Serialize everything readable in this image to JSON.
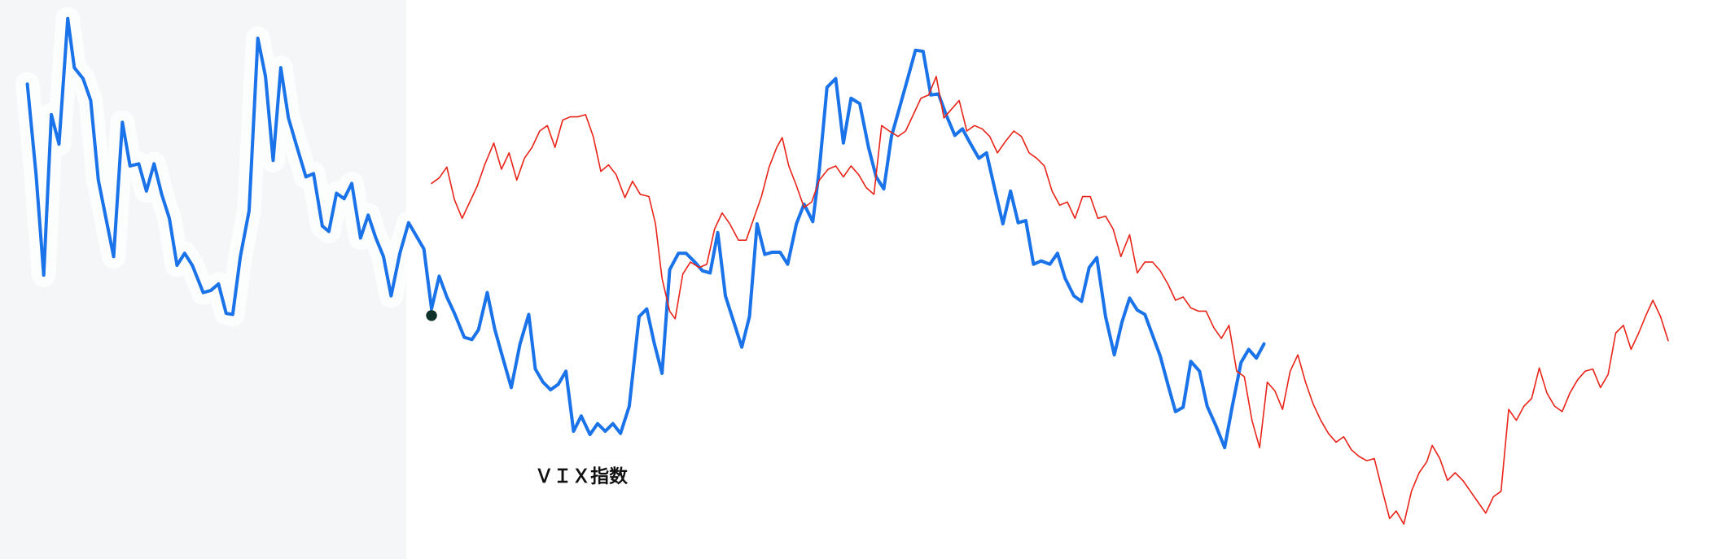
{
  "chart_data": {
    "type": "line",
    "annotation": "ＶＩＸ指数",
    "xlim": [
      0,
      1568
    ],
    "ylim": [
      512,
      0
    ],
    "series": [
      {
        "color": "#1a73e8",
        "width": 3,
        "x": [
          25,
          33,
          40,
          47,
          54,
          62,
          68,
          76,
          83,
          90,
          104,
          112,
          119,
          127,
          134,
          141,
          148,
          155,
          162,
          169,
          176,
          186,
          193,
          200,
          207,
          213,
          220,
          228,
          236,
          243,
          250,
          257,
          264,
          271,
          280,
          287,
          295,
          301,
          308,
          315,
          322,
          330,
          337,
          344,
          351,
          358,
          366,
          374,
          388,
          395,
          402,
          409,
          416,
          425,
          432,
          438,
          446,
          453,
          460,
          468,
          476,
          484,
          490,
          497,
          504,
          511,
          518,
          525,
          532,
          540,
          547,
          554,
          561,
          568,
          576,
          585,
          592,
          599,
          606,
          613,
          621,
          628,
          636,
          643,
          650,
          657,
          664,
          672,
          679,
          686,
          693,
          700,
          707,
          714,
          721,
          729,
          736,
          744,
          750,
          757,
          765,
          772,
          779,
          787,
          795,
          802,
          809,
          816,
          823,
          830,
          838,
          845,
          852,
          859,
          866,
          874,
          881,
          888,
          896,
          903,
          911,
          918,
          925,
          932,
          939,
          946,
          953,
          961,
          968,
          975,
          983,
          990,
          997,
          1004,
          1012,
          1020,
          1027,
          1034,
          1041,
          1048,
          1055,
          1062,
          1069,
          1076,
          1083,
          1090,
          1098,
          1105,
          1113,
          1121,
          1128,
          1136,
          1143,
          1150,
          1157
        ],
        "values": [
          77,
          160,
          252,
          105,
          132,
          17,
          62,
          72,
          92,
          165,
          235,
          112,
          152,
          150,
          175,
          150,
          178,
          200,
          243,
          232,
          243,
          268,
          266,
          260,
          287,
          288,
          235,
          193,
          35,
          70,
          147,
          62,
          108,
          132,
          162,
          159,
          207,
          212,
          177,
          182,
          168,
          218,
          197,
          218,
          235,
          271,
          232,
          204,
          228,
          283,
          253,
          272,
          287,
          309,
          311,
          302,
          268,
          302,
          327,
          355,
          315,
          288,
          338,
          350,
          357,
          352,
          340,
          395,
          381,
          398,
          388,
          395,
          388,
          397,
          372,
          290,
          283,
          315,
          342,
          247,
          232,
          232,
          240,
          248,
          250,
          213,
          271,
          296,
          318,
          290,
          205,
          233,
          231,
          231,
          242,
          205,
          187,
          203,
          155,
          80,
          72,
          131,
          90,
          95,
          135,
          162,
          173,
          125,
          100,
          75,
          46,
          47,
          87,
          86,
          105,
          124,
          118,
          131,
          145,
          140,
          175,
          205,
          175,
          204,
          202,
          242,
          239,
          242,
          232,
          255,
          271,
          276,
          245,
          236,
          290,
          325,
          295,
          273,
          284,
          288,
          307,
          326,
          352,
          377,
          373,
          331,
          340,
          372,
          390,
          410,
          372,
          332,
          320,
          328,
          315
        ]
      },
      {
        "color": "#e8251a",
        "width": 1.2,
        "x": [
          395,
          402,
          409,
          416,
          423,
          430,
          437,
          444,
          452,
          459,
          466,
          473,
          480,
          487,
          494,
          501,
          508,
          515,
          522,
          529,
          536,
          543,
          550,
          557,
          564,
          572,
          579,
          586,
          594,
          600,
          606,
          613,
          618,
          625,
          632,
          640,
          647,
          654,
          661,
          668,
          676,
          683,
          690,
          697,
          704,
          711,
          716,
          722,
          729,
          736,
          743,
          750,
          758,
          765,
          772,
          779,
          786,
          793,
          800,
          807,
          814,
          822,
          829,
          836,
          843,
          850,
          857,
          864,
          871,
          878,
          885,
          892,
          899,
          906,
          913,
          920,
          928,
          935,
          942,
          949,
          956,
          963,
          970,
          977,
          984,
          991,
          998,
          1005,
          1012,
          1019,
          1026,
          1034,
          1041,
          1048,
          1055,
          1062,
          1069,
          1076,
          1083,
          1090,
          1097,
          1104,
          1111,
          1118,
          1125,
          1132,
          1139,
          1146,
          1153,
          1160,
          1167,
          1174,
          1181,
          1188,
          1195,
          1202,
          1209,
          1216,
          1223,
          1230,
          1237,
          1244,
          1251,
          1258,
          1265,
          1272,
          1278,
          1285,
          1292,
          1299,
          1306,
          1311,
          1318,
          1325,
          1332,
          1339,
          1346,
          1353,
          1360,
          1367,
          1374,
          1381,
          1388,
          1395,
          1402,
          1409,
          1416,
          1423,
          1430,
          1437,
          1444,
          1451,
          1458,
          1465,
          1472,
          1479,
          1486,
          1493,
          1500,
          1507,
          1513,
          1520,
          1527
        ],
        "values": [
          168,
          163,
          153,
          183,
          200,
          185,
          170,
          150,
          131,
          155,
          140,
          165,
          145,
          135,
          120,
          115,
          135,
          110,
          107,
          107,
          105,
          125,
          157,
          151,
          160,
          181,
          166,
          178,
          180,
          205,
          255,
          285,
          292,
          251,
          240,
          245,
          242,
          210,
          195,
          205,
          220,
          220,
          200,
          180,
          153,
          135,
          126,
          152,
          170,
          190,
          185,
          165,
          155,
          152,
          162,
          152,
          160,
          172,
          178,
          115,
          120,
          125,
          120,
          105,
          90,
          87,
          70,
          108,
          100,
          92,
          120,
          115,
          118,
          125,
          140,
          130,
          120,
          125,
          140,
          145,
          152,
          175,
          188,
          185,
          200,
          180,
          180,
          200,
          198,
          210,
          235,
          215,
          250,
          240,
          240,
          248,
          260,
          275,
          272,
          282,
          285,
          285,
          300,
          310,
          298,
          340,
          345,
          385,
          410,
          350,
          358,
          375,
          340,
          325,
          350,
          370,
          385,
          397,
          405,
          400,
          412,
          418,
          422,
          420,
          448,
          475,
          468,
          480,
          450,
          433,
          423,
          408,
          420,
          440,
          433,
          440,
          450,
          460,
          470,
          455,
          450,
          375,
          385,
          372,
          365,
          337,
          360,
          372,
          377,
          360,
          348,
          340,
          338,
          355,
          343,
          305,
          298,
          320,
          305,
          288,
          275,
          290,
          312
        ]
      }
    ]
  }
}
